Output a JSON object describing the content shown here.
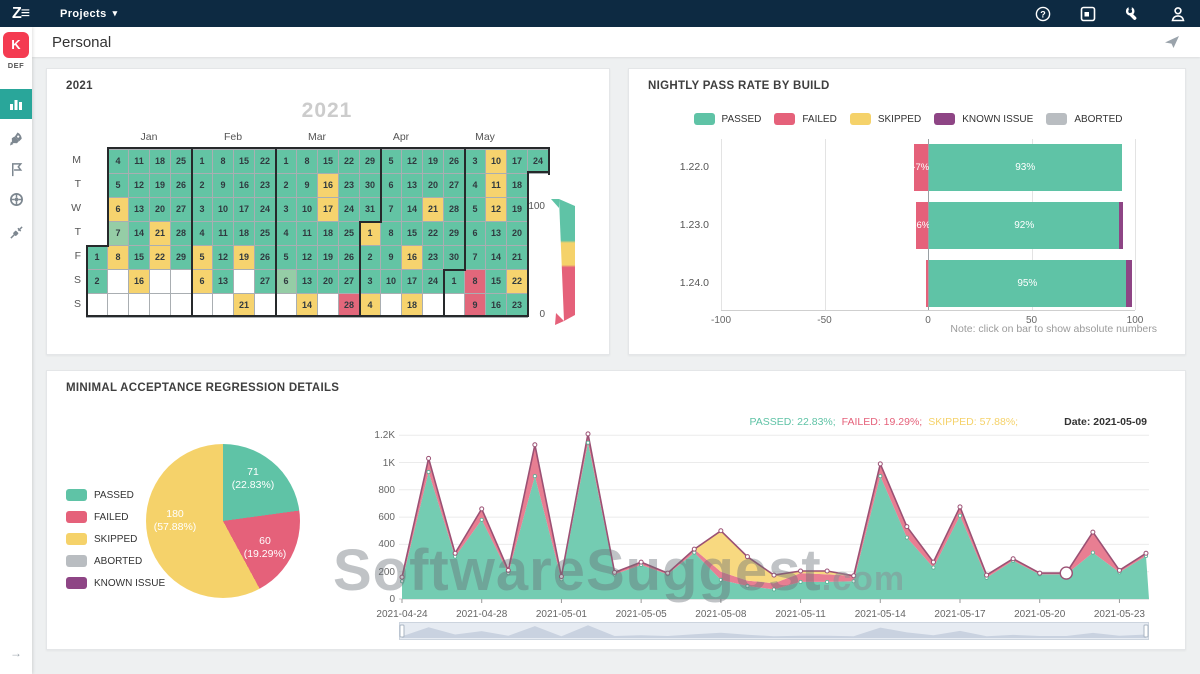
{
  "topbar": {
    "logo": "Z≡",
    "menu_label": "Projects",
    "caret": "▾"
  },
  "header": {
    "title": "Personal"
  },
  "sidebar": {
    "project_label": "DEF",
    "expand_arrow": "→",
    "items": [
      {
        "name": "dashboards",
        "active": true
      },
      {
        "name": "launches",
        "active": false
      },
      {
        "name": "milestones",
        "active": false
      },
      {
        "name": "sessions",
        "active": false
      },
      {
        "name": "integrations",
        "active": false
      }
    ]
  },
  "colors": {
    "passed": "#5fc3a6",
    "failed": "#e5617a",
    "skipped": "#f5d26a",
    "known_issue": "#8e4585",
    "aborted": "#b9bdc1",
    "cal_green": "#63c4a4",
    "cal_light_green": "#95cda6",
    "cal_yellow": "#f6d36e",
    "cal_red": "#e2677b",
    "cal_empty": "#ffffff",
    "trend_passed_fill": "#74ccb2",
    "trend_failed_fill": "#e87e92",
    "trend_skipped_fill": "#f8d980",
    "trend_line": "#9b5174"
  },
  "calendar_widget": {
    "title": "2021",
    "chart_title": "2021",
    "visualmap": {
      "max_label": "100",
      "min_label": "0"
    }
  },
  "pass_rate_widget": {
    "title": "NIGHTLY PASS RATE BY BUILD",
    "legend": [
      "PASSED",
      "FAILED",
      "SKIPPED",
      "KNOWN ISSUE",
      "ABORTED"
    ],
    "note": "Note: click on bar to show absolute numbers"
  },
  "regression_widget": {
    "title": "MINIMAL ACCEPTANCE REGRESSION DETAILS",
    "legend": [
      "PASSED",
      "FAILED",
      "SKIPPED",
      "ABORTED",
      "KNOWN ISSUE"
    ],
    "summary": [
      {
        "label": "PASSED",
        "value": "22.83%"
      },
      {
        "label": "FAILED",
        "value": "19.29%"
      },
      {
        "label": "SKIPPED",
        "value": "57.88%"
      }
    ],
    "date_label": "Date: 2021-05-09"
  },
  "watermark": {
    "text": "SoftwareSuggest",
    "suffix": ".com"
  },
  "chart_data": [
    {
      "type": "heatmap",
      "title": "2021",
      "rows": [
        "M",
        "T",
        "W",
        "T",
        "F",
        "S",
        "S"
      ],
      "months": [
        {
          "label": "Jan",
          "weeks": [
            1,
            4
          ]
        },
        {
          "label": "Feb",
          "weeks": [
            5,
            8
          ]
        },
        {
          "label": "Mar",
          "weeks": [
            9,
            12
          ]
        },
        {
          "label": "Apr",
          "weeks": [
            13,
            16
          ]
        },
        {
          "label": "May",
          "weeks": [
            17,
            20
          ]
        }
      ],
      "visualmap": {
        "max": 100,
        "min": 0
      },
      "weeks": [
        [
          null,
          null,
          null,
          null,
          [
            1,
            "g"
          ],
          [
            2,
            "g"
          ],
          [
            "",
            "w"
          ]
        ],
        [
          [
            4,
            "g"
          ],
          [
            5,
            "g"
          ],
          [
            6,
            "y"
          ],
          [
            7,
            "lg"
          ],
          [
            8,
            "y"
          ],
          [
            "",
            "w"
          ],
          [
            "",
            "w"
          ]
        ],
        [
          [
            11,
            "g"
          ],
          [
            12,
            "g"
          ],
          [
            13,
            "g"
          ],
          [
            14,
            "g"
          ],
          [
            15,
            "g"
          ],
          [
            16,
            "y"
          ],
          [
            "",
            "w"
          ]
        ],
        [
          [
            18,
            "g"
          ],
          [
            19,
            "g"
          ],
          [
            20,
            "g"
          ],
          [
            21,
            "y"
          ],
          [
            22,
            "y"
          ],
          [
            "",
            "w"
          ],
          [
            "",
            "w"
          ]
        ],
        [
          [
            25,
            "g"
          ],
          [
            26,
            "g"
          ],
          [
            27,
            "g"
          ],
          [
            28,
            "g"
          ],
          [
            29,
            "g"
          ],
          [
            "",
            "w"
          ],
          [
            "",
            "w"
          ]
        ],
        [
          [
            1,
            "g"
          ],
          [
            2,
            "g"
          ],
          [
            3,
            "g"
          ],
          [
            4,
            "g"
          ],
          [
            5,
            "y"
          ],
          [
            6,
            "y"
          ],
          [
            "",
            "w"
          ]
        ],
        [
          [
            8,
            "g"
          ],
          [
            9,
            "g"
          ],
          [
            10,
            "g"
          ],
          [
            11,
            "g"
          ],
          [
            12,
            "g"
          ],
          [
            13,
            "g"
          ],
          [
            "",
            "w"
          ]
        ],
        [
          [
            15,
            "g"
          ],
          [
            16,
            "g"
          ],
          [
            17,
            "g"
          ],
          [
            18,
            "g"
          ],
          [
            19,
            "y"
          ],
          [
            "",
            "w"
          ],
          [
            21,
            "y"
          ]
        ],
        [
          [
            22,
            "g"
          ],
          [
            23,
            "g"
          ],
          [
            24,
            "g"
          ],
          [
            25,
            "g"
          ],
          [
            26,
            "g"
          ],
          [
            27,
            "g"
          ],
          [
            "",
            "w"
          ]
        ],
        [
          [
            1,
            "g"
          ],
          [
            2,
            "g"
          ],
          [
            3,
            "g"
          ],
          [
            4,
            "g"
          ],
          [
            5,
            "g"
          ],
          [
            6,
            "lg"
          ],
          [
            "",
            "w"
          ]
        ],
        [
          [
            8,
            "g"
          ],
          [
            9,
            "g"
          ],
          [
            10,
            "g"
          ],
          [
            11,
            "g"
          ],
          [
            12,
            "g"
          ],
          [
            13,
            "g"
          ],
          [
            14,
            "y"
          ]
        ],
        [
          [
            15,
            "g"
          ],
          [
            16,
            "y"
          ],
          [
            17,
            "y"
          ],
          [
            18,
            "g"
          ],
          [
            19,
            "g"
          ],
          [
            20,
            "g"
          ],
          [
            "",
            "w"
          ]
        ],
        [
          [
            22,
            "g"
          ],
          [
            23,
            "g"
          ],
          [
            24,
            "g"
          ],
          [
            25,
            "g"
          ],
          [
            26,
            "g"
          ],
          [
            27,
            "g"
          ],
          [
            28,
            "r"
          ]
        ],
        [
          [
            29,
            "g"
          ],
          [
            30,
            "g"
          ],
          [
            31,
            "g"
          ],
          [
            1,
            "y"
          ],
          [
            2,
            "g"
          ],
          [
            3,
            "g"
          ],
          [
            4,
            "y"
          ]
        ],
        [
          [
            5,
            "g"
          ],
          [
            6,
            "g"
          ],
          [
            7,
            "g"
          ],
          [
            8,
            "g"
          ],
          [
            9,
            "g"
          ],
          [
            10,
            "g"
          ],
          [
            "",
            "w"
          ]
        ],
        [
          [
            12,
            "g"
          ],
          [
            13,
            "g"
          ],
          [
            14,
            "g"
          ],
          [
            15,
            "g"
          ],
          [
            16,
            "y"
          ],
          [
            17,
            "g"
          ],
          [
            18,
            "y"
          ]
        ],
        [
          [
            19,
            "g"
          ],
          [
            20,
            "g"
          ],
          [
            21,
            "y"
          ],
          [
            22,
            "g"
          ],
          [
            23,
            "g"
          ],
          [
            24,
            "g"
          ],
          [
            "",
            "w"
          ]
        ],
        [
          [
            26,
            "g"
          ],
          [
            27,
            "g"
          ],
          [
            28,
            "g"
          ],
          [
            29,
            "g"
          ],
          [
            30,
            "g"
          ],
          [
            1,
            "g"
          ],
          [
            "",
            "w"
          ]
        ],
        [
          [
            3,
            "g"
          ],
          [
            4,
            "g"
          ],
          [
            5,
            "g"
          ],
          [
            6,
            "g"
          ],
          [
            7,
            "g"
          ],
          [
            8,
            "r"
          ],
          [
            9,
            "r"
          ]
        ],
        [
          [
            10,
            "y"
          ],
          [
            11,
            "y"
          ],
          [
            12,
            "y"
          ],
          [
            13,
            "g"
          ],
          [
            14,
            "g"
          ],
          [
            15,
            "g"
          ],
          [
            16,
            "g"
          ]
        ],
        [
          [
            17,
            "g"
          ],
          [
            18,
            "g"
          ],
          [
            19,
            "g"
          ],
          [
            20,
            "g"
          ],
          [
            21,
            "g"
          ],
          [
            22,
            "y"
          ],
          [
            23,
            "g"
          ]
        ],
        [
          [
            24,
            "g"
          ],
          null,
          null,
          null,
          null,
          null,
          null
        ]
      ]
    },
    {
      "type": "bar",
      "orientation": "horizontal",
      "title": "NIGHTLY PASS RATE BY BUILD",
      "categories": [
        "1.22.0",
        "1.23.0",
        "1.24.0"
      ],
      "xlim": [
        -100,
        100
      ],
      "x_ticks": [
        "-100",
        "-50",
        "0",
        "50",
        "100"
      ],
      "series": [
        {
          "name": "FAILED",
          "values": [
            -7,
            -6,
            -1
          ],
          "labels": [
            "-7%",
            "-6%",
            ""
          ]
        },
        {
          "name": "PASSED",
          "values": [
            93,
            92,
            95
          ],
          "labels": [
            "93%",
            "92%",
            "95%"
          ]
        },
        {
          "name": "KNOWN ISSUE",
          "values": [
            0,
            1.5,
            3
          ],
          "labels": [
            "",
            "",
            ""
          ]
        }
      ]
    },
    {
      "type": "pie",
      "title": "MINIMAL ACCEPTANCE REGRESSION DETAILS",
      "slices": [
        {
          "name": "PASSED",
          "value": 71,
          "pct": "22.83%"
        },
        {
          "name": "FAILED",
          "value": 60,
          "pct": "19.29%"
        },
        {
          "name": "SKIPPED",
          "value": 180,
          "pct": "57.88%"
        },
        {
          "name": "ABORTED",
          "value": 0,
          "pct": ""
        },
        {
          "name": "KNOWN ISSUE",
          "value": 0,
          "pct": ""
        }
      ]
    },
    {
      "type": "area",
      "stacked": true,
      "n_points": 29,
      "tick_interval": 3,
      "highlight_index": 25,
      "x_tick_labels": [
        "2021-04-24",
        "2021-04-28",
        "2021-05-01",
        "2021-05-05",
        "2021-05-08",
        "2021-05-11",
        "2021-05-14",
        "2021-05-17",
        "2021-05-20",
        "2021-05-23"
      ],
      "y_ticks": [
        "0",
        "200",
        "400",
        "600",
        "800",
        "1K",
        "1.2K"
      ],
      "ylim": [
        0,
        1250
      ],
      "series": [
        {
          "name": "PASSED",
          "values": [
            130,
            930,
            310,
            580,
            190,
            900,
            145,
            1145,
            180,
            250,
            180,
            340,
            140,
            95,
            70,
            125,
            125,
            130,
            900,
            450,
            230,
            610,
            155,
            280,
            180,
            180,
            340,
            195,
            315
          ]
        },
        {
          "name": "FAILED",
          "values": [
            30,
            100,
            25,
            80,
            20,
            230,
            20,
            65,
            15,
            20,
            10,
            25,
            60,
            40,
            45,
            65,
            55,
            40,
            90,
            70,
            40,
            65,
            20,
            15,
            10,
            10,
            150,
            15,
            20
          ]
        },
        {
          "name": "SKIPPED",
          "values": [
            0,
            0,
            0,
            0,
            0,
            0,
            0,
            0,
            0,
            0,
            0,
            0,
            300,
            175,
            60,
            15,
            25,
            0,
            0,
            10,
            0,
            0,
            0,
            0,
            0,
            0,
            0,
            0,
            0
          ]
        }
      ]
    }
  ]
}
